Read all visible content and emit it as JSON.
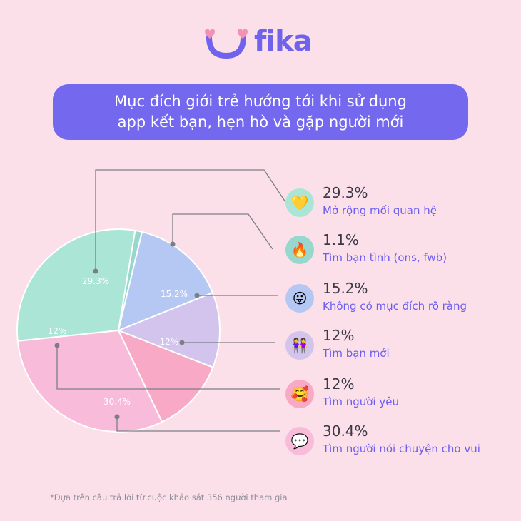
{
  "brand": {
    "name": "fika"
  },
  "title": {
    "line1": "Mục đích giới trẻ hướng tới khi sử dụng",
    "line2": "app kết bạn, hẹn hò và gặp người mới"
  },
  "chart_data": {
    "type": "pie",
    "slices": [
      {
        "label": "Mở rộng mối quan hệ",
        "value": 29.3,
        "pct_text": "29.3%",
        "color": "#abe5d5",
        "icon": "yellow-heart-icon",
        "icon_bg": "#abe5d5",
        "icon_char": "💛"
      },
      {
        "label": "Tìm bạn tình (ons, fwb)",
        "value": 1.1,
        "pct_text": "1.1%",
        "color": "#96d7ce",
        "icon": "fire-icon",
        "icon_bg": "#96d7ce",
        "icon_char": "🔥"
      },
      {
        "label": "Không có mục đích rõ ràng",
        "value": 15.2,
        "pct_text": "15.2%",
        "color": "#b4c8f3",
        "icon": "tongue-face-icon",
        "icon_bg": "#b4c8f3",
        "icon_char": "😛"
      },
      {
        "label": "Tìm bạn mới",
        "value": 12,
        "pct_text": "12%",
        "color": "#d2c4ec",
        "icon": "two-women-icon",
        "icon_bg": "#d2c4ec",
        "icon_char": "👭"
      },
      {
        "label": "Tìm người yêu",
        "value": 12,
        "pct_text": "12%",
        "color": "#f8a9c6",
        "icon": "smiling-hearts-face-icon",
        "icon_bg": "#f8a9c6",
        "icon_char": "🥰"
      },
      {
        "label": "Tìm người nói chuyện cho vui",
        "value": 30.4,
        "pct_text": "30.4%",
        "color": "#f8bcda",
        "icon": "speech-bubble-icon",
        "icon_bg": "#f8bcda",
        "icon_char": "💬"
      }
    ]
  },
  "footnote": "*Dựa trên câu trả lời từ cuộc khảo sát 356 người tham gia"
}
